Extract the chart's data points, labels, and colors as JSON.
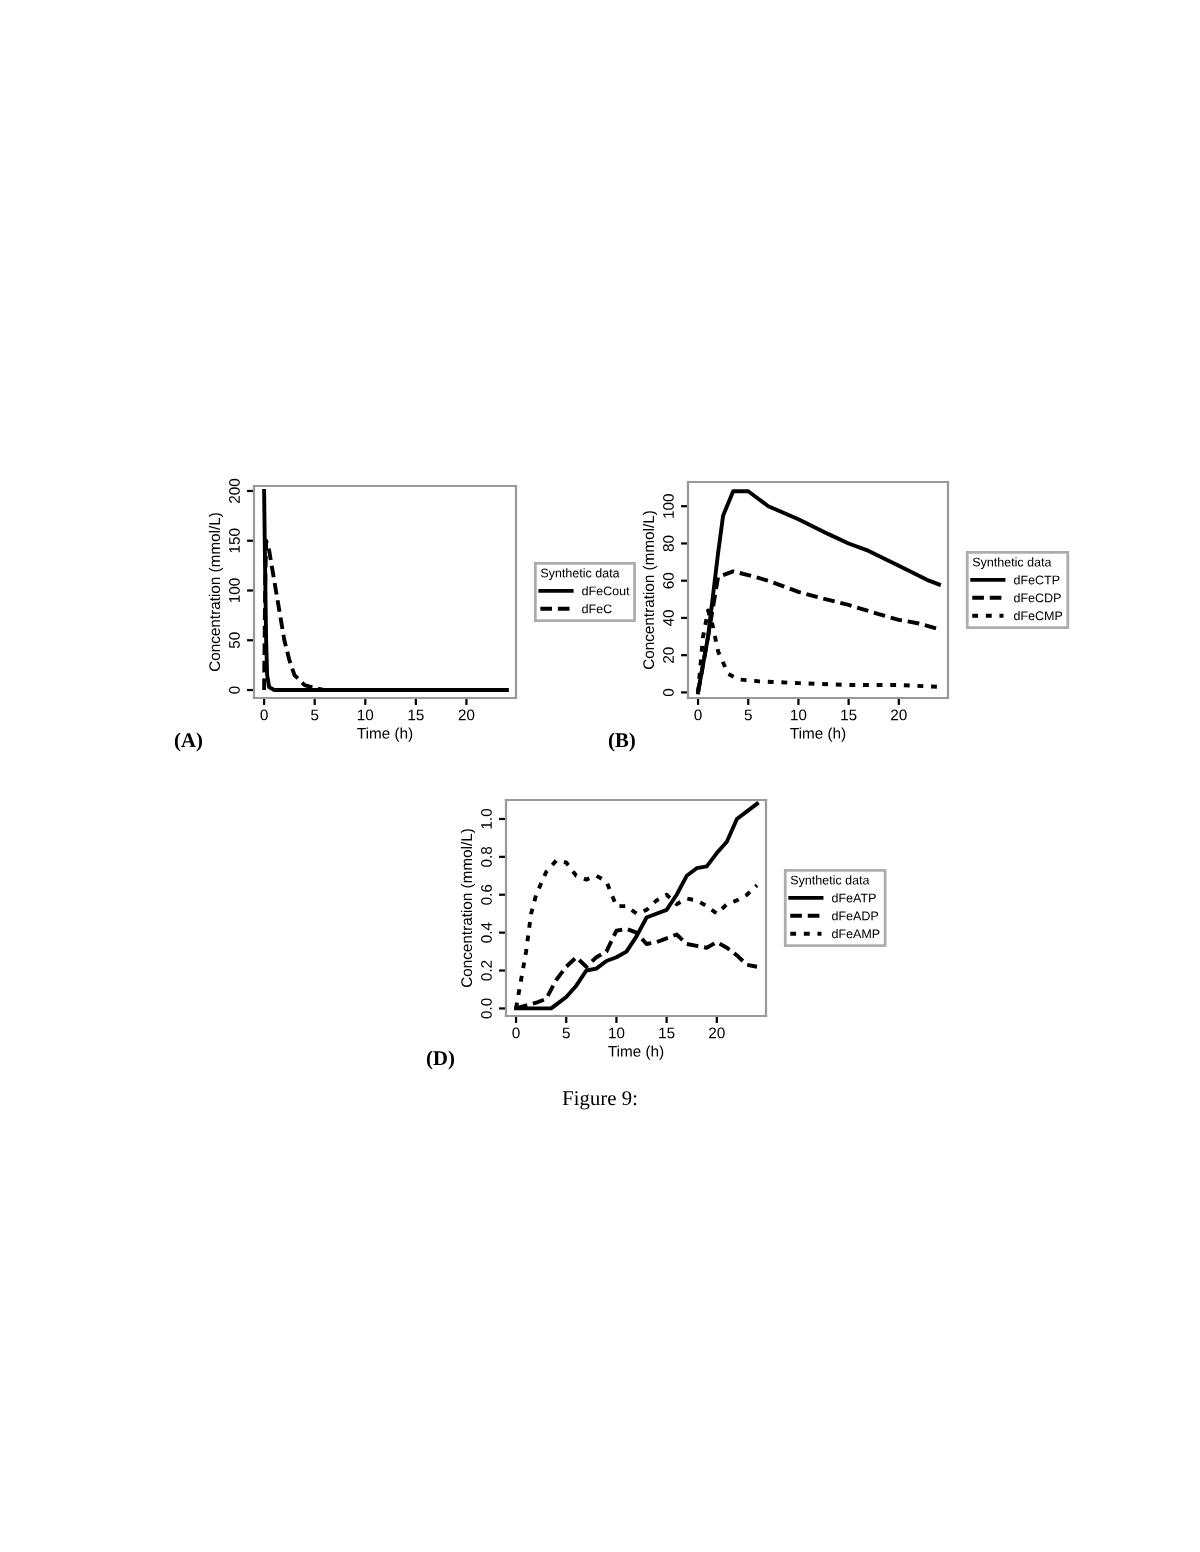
{
  "chart_data": [
    {
      "type": "line",
      "xlabel": "Time (h)",
      "ylabel": "Concentration (mmol/L)",
      "legend_title": "Synthetic data",
      "legend": "right",
      "grid": false,
      "xlim": [
        -1,
        24.9
      ],
      "xticks": [
        0,
        5,
        10,
        15,
        20
      ],
      "ylim": [
        -8,
        205
      ],
      "yticks": [
        0,
        50,
        100,
        150,
        200
      ],
      "annotations": [
        "(A)"
      ],
      "series": [
        {
          "name": "dFeCout",
          "color": "#000000",
          "line_style": "solid",
          "x": [
            0,
            0.1,
            0.2,
            0.3,
            0.5,
            1,
            24
          ],
          "values": [
            200,
            120,
            50,
            15,
            3,
            0,
            0
          ]
        },
        {
          "name": "dFeC",
          "color": "#000000",
          "line_style": "dashed",
          "x": [
            0,
            0.1,
            0.2,
            0.5,
            1,
            1.5,
            2,
            2.5,
            3,
            4,
            5,
            6,
            24
          ],
          "values": [
            0,
            100,
            150,
            140,
            110,
            80,
            50,
            30,
            15,
            5,
            2,
            0,
            0
          ]
        }
      ]
    },
    {
      "type": "line",
      "xlabel": "Time (h)",
      "ylabel": "Concentration (mmol/L)",
      "legend_title": "Synthetic data",
      "legend": "right",
      "grid": false,
      "xlim": [
        -1,
        24.9
      ],
      "xticks": [
        0,
        5,
        10,
        15,
        20
      ],
      "ylim": [
        -3,
        113
      ],
      "yticks": [
        0,
        20,
        40,
        60,
        80,
        100
      ],
      "annotations": [
        "(B)"
      ],
      "series": [
        {
          "name": "dFeCTP",
          "color": "#000000",
          "line_style": "solid",
          "x": [
            0,
            1,
            2,
            2.5,
            3.5,
            5,
            6,
            7,
            10,
            13,
            15,
            17,
            20,
            23,
            24
          ],
          "values": [
            0,
            30,
            75,
            95,
            108,
            108,
            104,
            100,
            93,
            85,
            80,
            76,
            68,
            60,
            58
          ]
        },
        {
          "name": "dFeCDP",
          "color": "#000000",
          "line_style": "dashed",
          "x": [
            0,
            1,
            2,
            3.5,
            5,
            7,
            10,
            12,
            15,
            18,
            20,
            22,
            24
          ],
          "values": [
            0,
            30,
            62,
            65,
            63,
            60,
            54,
            51,
            47,
            42,
            39,
            37,
            34
          ]
        },
        {
          "name": "dFeCMP",
          "color": "#000000",
          "line_style": "dotted",
          "x": [
            0,
            0.5,
            1,
            1.5,
            2,
            3,
            4,
            6,
            10,
            15,
            20,
            24
          ],
          "values": [
            0,
            30,
            44,
            35,
            22,
            10,
            7,
            6,
            5,
            4,
            4,
            3
          ]
        }
      ]
    },
    {
      "type": "line",
      "xlabel": "Time (h)",
      "ylabel": "Concentration (mmol/L)",
      "legend_title": "Synthetic data",
      "legend": "right",
      "grid": false,
      "xlim": [
        -1,
        24.9
      ],
      "xticks": [
        0,
        5,
        10,
        15,
        20
      ],
      "ylim": [
        -0.04,
        1.1
      ],
      "yticks": [
        {
          "value": 0,
          "label": "0.0"
        },
        0.2,
        0.4,
        0.6,
        0.8,
        {
          "value": 1,
          "label": "1.0"
        }
      ],
      "annotations": [
        "(D)",
        "Figure 9:"
      ],
      "series": [
        {
          "name": "dFeATP",
          "color": "#000000",
          "line_style": "solid",
          "x": [
            0,
            3.5,
            4,
            5,
            6,
            7,
            8,
            9,
            10,
            11,
            12,
            13,
            15,
            16,
            17,
            18,
            19,
            20,
            21,
            22,
            23,
            24
          ],
          "values": [
            0,
            0,
            0.02,
            0.06,
            0.12,
            0.2,
            0.21,
            0.25,
            0.27,
            0.3,
            0.38,
            0.48,
            0.52,
            0.6,
            0.7,
            0.74,
            0.75,
            0.82,
            0.88,
            1.0,
            1.04,
            1.08
          ]
        },
        {
          "name": "dFeADP",
          "color": "#000000",
          "line_style": "dashed",
          "x": [
            0,
            2,
            3,
            4,
            5,
            6,
            7,
            8,
            9,
            10,
            11,
            12,
            13,
            14,
            15,
            16,
            17,
            18,
            19,
            20,
            21,
            22,
            23,
            24
          ],
          "values": [
            0,
            0.03,
            0.05,
            0.15,
            0.22,
            0.27,
            0.22,
            0.27,
            0.3,
            0.41,
            0.42,
            0.4,
            0.34,
            0.35,
            0.37,
            0.39,
            0.34,
            0.33,
            0.32,
            0.35,
            0.32,
            0.28,
            0.23,
            0.22
          ]
        },
        {
          "name": "dFeAMP",
          "color": "#000000",
          "line_style": "dotted",
          "x": [
            0,
            1,
            1.5,
            2,
            3,
            4,
            5,
            6,
            7,
            8,
            9,
            10,
            11,
            12,
            13,
            14,
            15,
            16,
            17,
            18,
            19,
            20,
            21,
            22,
            23,
            24
          ],
          "values": [
            0,
            0.3,
            0.5,
            0.6,
            0.72,
            0.78,
            0.77,
            0.7,
            0.68,
            0.7,
            0.67,
            0.54,
            0.54,
            0.5,
            0.52,
            0.57,
            0.6,
            0.55,
            0.58,
            0.57,
            0.54,
            0.5,
            0.55,
            0.57,
            0.6,
            0.65
          ]
        }
      ]
    }
  ]
}
